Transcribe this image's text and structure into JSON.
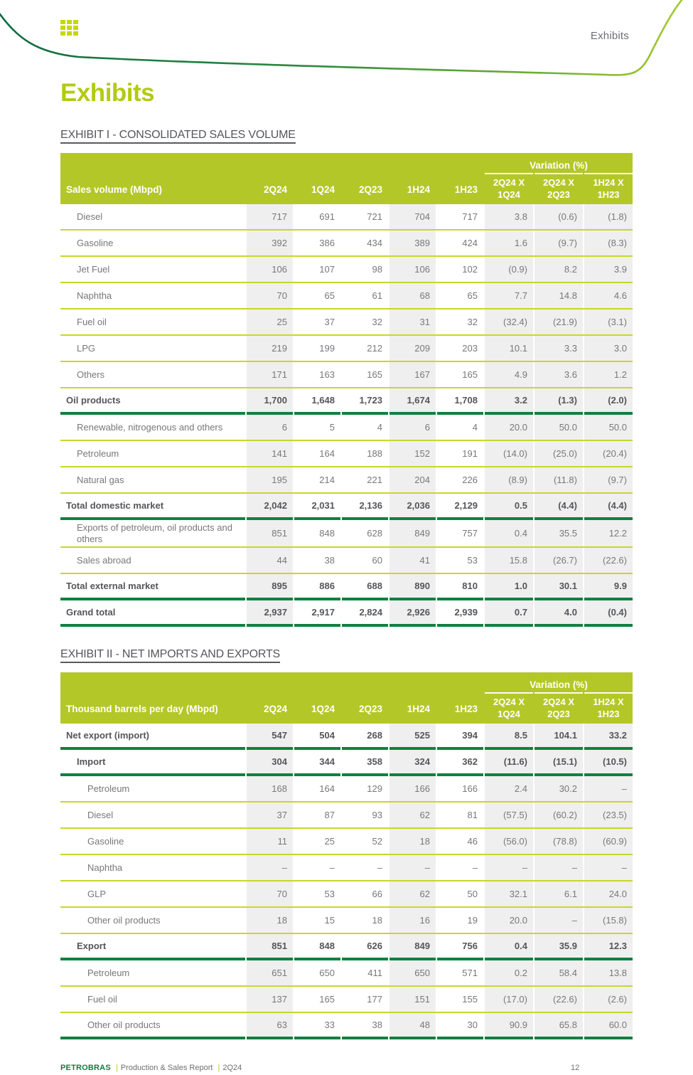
{
  "colors": {
    "lime_header": "#b4c728",
    "lime_line": "#c8d72b",
    "lime_bright": "#b3ca12",
    "logo_lime": "#c5d800",
    "green_dark": "#11803f",
    "band_gray": "#efefef",
    "text_gray": "#77787b",
    "text_bold": "#55565a",
    "footer_brand_green": "#0b7f41",
    "curve_gradient_start": "#0c6a41",
    "curve_gradient_end": "#a9cb2b"
  },
  "header": {
    "running_label": "Exhibits"
  },
  "title": "Exhibits",
  "footer": {
    "brand": "PETROBRAS",
    "separator": "|",
    "report_name": "Production & Sales Report",
    "period": "2Q24",
    "page_number": "12"
  },
  "exhibit1": {
    "heading": "EXHIBIT I - CONSOLIDATED SALES VOLUME",
    "row_label_header": "Sales volume (Mbpd)",
    "variation_header": "Variation (%)",
    "period_columns": [
      "2Q24",
      "1Q24",
      "2Q23",
      "1H24",
      "1H23"
    ],
    "variation_columns": [
      [
        "2Q24 X",
        "1Q24"
      ],
      [
        "2Q24 X",
        "2Q23"
      ],
      [
        "1H24 X",
        "1H23"
      ]
    ],
    "rows": [
      {
        "label": "Diesel",
        "indent": 1,
        "bold": false,
        "sep": "thin",
        "values": [
          "717",
          "691",
          "721",
          "704",
          "717",
          "3.8",
          "(0.6)",
          "(1.8)"
        ]
      },
      {
        "label": "Gasoline",
        "indent": 1,
        "bold": false,
        "sep": "thin",
        "values": [
          "392",
          "386",
          "434",
          "389",
          "424",
          "1.6",
          "(9.7)",
          "(8.3)"
        ]
      },
      {
        "label": "Jet Fuel",
        "indent": 1,
        "bold": false,
        "sep": "thin",
        "values": [
          "106",
          "107",
          "98",
          "106",
          "102",
          "(0.9)",
          "8.2",
          "3.9"
        ]
      },
      {
        "label": "Naphtha",
        "indent": 1,
        "bold": false,
        "sep": "thin",
        "values": [
          "70",
          "65",
          "61",
          "68",
          "65",
          "7.7",
          "14.8",
          "4.6"
        ]
      },
      {
        "label": "Fuel oil",
        "indent": 1,
        "bold": false,
        "sep": "thin",
        "values": [
          "25",
          "37",
          "32",
          "31",
          "32",
          "(32.4)",
          "(21.9)",
          "(3.1)"
        ]
      },
      {
        "label": "LPG",
        "indent": 1,
        "bold": false,
        "sep": "thin",
        "values": [
          "219",
          "199",
          "212",
          "209",
          "203",
          "10.1",
          "3.3",
          "3.0"
        ]
      },
      {
        "label": "Others",
        "indent": 1,
        "bold": false,
        "sep": "thin",
        "values": [
          "171",
          "163",
          "165",
          "167",
          "165",
          "4.9",
          "3.6",
          "1.2"
        ]
      },
      {
        "label": "Oil products",
        "indent": 0,
        "bold": true,
        "sep": "thick",
        "values": [
          "1,700",
          "1,648",
          "1,723",
          "1,674",
          "1,708",
          "3.2",
          "(1.3)",
          "(2.0)"
        ]
      },
      {
        "label": "Renewable, nitrogenous and others",
        "indent": 1,
        "bold": false,
        "sep": "thin",
        "values": [
          "6",
          "5",
          "4",
          "6",
          "4",
          "20.0",
          "50.0",
          "50.0"
        ]
      },
      {
        "label": "Petroleum",
        "indent": 1,
        "bold": false,
        "sep": "thin",
        "values": [
          "141",
          "164",
          "188",
          "152",
          "191",
          "(14.0)",
          "(25.0)",
          "(20.4)"
        ]
      },
      {
        "label": "Natural gas",
        "indent": 1,
        "bold": false,
        "sep": "thin",
        "values": [
          "195",
          "214",
          "221",
          "204",
          "226",
          "(8.9)",
          "(11.8)",
          "(9.7)"
        ]
      },
      {
        "label": "Total domestic market",
        "indent": 0,
        "bold": true,
        "sep": "thick",
        "values": [
          "2,042",
          "2,031",
          "2,136",
          "2,036",
          "2,129",
          "0.5",
          "(4.4)",
          "(4.4)"
        ]
      },
      {
        "label": "Exports of petroleum, oil products and others",
        "indent": 1,
        "bold": false,
        "sep": "thin",
        "values": [
          "851",
          "848",
          "628",
          "849",
          "757",
          "0.4",
          "35.5",
          "12.2"
        ]
      },
      {
        "label": "Sales abroad",
        "indent": 1,
        "bold": false,
        "sep": "thin",
        "values": [
          "44",
          "38",
          "60",
          "41",
          "53",
          "15.8",
          "(26.7)",
          "(22.6)"
        ]
      },
      {
        "label": "Total external market",
        "indent": 0,
        "bold": true,
        "sep": "thick",
        "values": [
          "895",
          "886",
          "688",
          "890",
          "810",
          "1.0",
          "30.1",
          "9.9"
        ]
      },
      {
        "label": "Grand total",
        "indent": 0,
        "bold": true,
        "sep": "thick",
        "values": [
          "2,937",
          "2,917",
          "2,824",
          "2,926",
          "2,939",
          "0.7",
          "4.0",
          "(0.4)"
        ]
      }
    ]
  },
  "exhibit2": {
    "heading": "EXHIBIT II - NET IMPORTS AND EXPORTS",
    "row_label_header": "Thousand barrels per day (Mbpd)",
    "variation_header": "Variation (%)",
    "period_columns": [
      "2Q24",
      "1Q24",
      "2Q23",
      "1H24",
      "1H23"
    ],
    "variation_columns": [
      [
        "2Q24 X",
        "1Q24"
      ],
      [
        "2Q24 X",
        "2Q23"
      ],
      [
        "1H24 X",
        "1H23"
      ]
    ],
    "rows": [
      {
        "label": "Net export (import)",
        "indent": 0,
        "bold": true,
        "sep": "thick",
        "values": [
          "547",
          "504",
          "268",
          "525",
          "394",
          "8.5",
          "104.1",
          "33.2"
        ]
      },
      {
        "label": "Import",
        "indent": 1,
        "bold": true,
        "sep": "thick",
        "values": [
          "304",
          "344",
          "358",
          "324",
          "362",
          "(11.6)",
          "(15.1)",
          "(10.5)"
        ]
      },
      {
        "label": "Petroleum",
        "indent": 2,
        "bold": false,
        "sep": "thin",
        "values": [
          "168",
          "164",
          "129",
          "166",
          "166",
          "2.4",
          "30.2",
          "–"
        ]
      },
      {
        "label": "Diesel",
        "indent": 2,
        "bold": false,
        "sep": "thin",
        "values": [
          "37",
          "87",
          "93",
          "62",
          "81",
          "(57.5)",
          "(60.2)",
          "(23.5)"
        ]
      },
      {
        "label": "Gasoline",
        "indent": 2,
        "bold": false,
        "sep": "thin",
        "values": [
          "11",
          "25",
          "52",
          "18",
          "46",
          "(56.0)",
          "(78.8)",
          "(60.9)"
        ]
      },
      {
        "label": "Naphtha",
        "indent": 2,
        "bold": false,
        "sep": "thin",
        "values": [
          "–",
          "–",
          "–",
          "–",
          "–",
          "–",
          "–",
          "–"
        ]
      },
      {
        "label": "GLP",
        "indent": 2,
        "bold": false,
        "sep": "thin",
        "values": [
          "70",
          "53",
          "66",
          "62",
          "50",
          "32.1",
          "6.1",
          "24.0"
        ]
      },
      {
        "label": "Other oil products",
        "indent": 2,
        "bold": false,
        "sep": "thin",
        "values": [
          "18",
          "15",
          "18",
          "16",
          "19",
          "20.0",
          "–",
          "(15.8)"
        ]
      },
      {
        "label": "Export",
        "indent": 1,
        "bold": true,
        "sep": "thick",
        "values": [
          "851",
          "848",
          "626",
          "849",
          "756",
          "0.4",
          "35.9",
          "12.3"
        ]
      },
      {
        "label": "Petroleum",
        "indent": 2,
        "bold": false,
        "sep": "thin",
        "values": [
          "651",
          "650",
          "411",
          "650",
          "571",
          "0.2",
          "58.4",
          "13.8"
        ]
      },
      {
        "label": "Fuel oil",
        "indent": 2,
        "bold": false,
        "sep": "thin",
        "values": [
          "137",
          "165",
          "177",
          "151",
          "155",
          "(17.0)",
          "(22.6)",
          "(2.6)"
        ]
      },
      {
        "label": "Other oil products",
        "indent": 2,
        "bold": false,
        "sep": "thick",
        "values": [
          "63",
          "33",
          "38",
          "48",
          "30",
          "90.9",
          "65.8",
          "60.0"
        ]
      }
    ]
  }
}
